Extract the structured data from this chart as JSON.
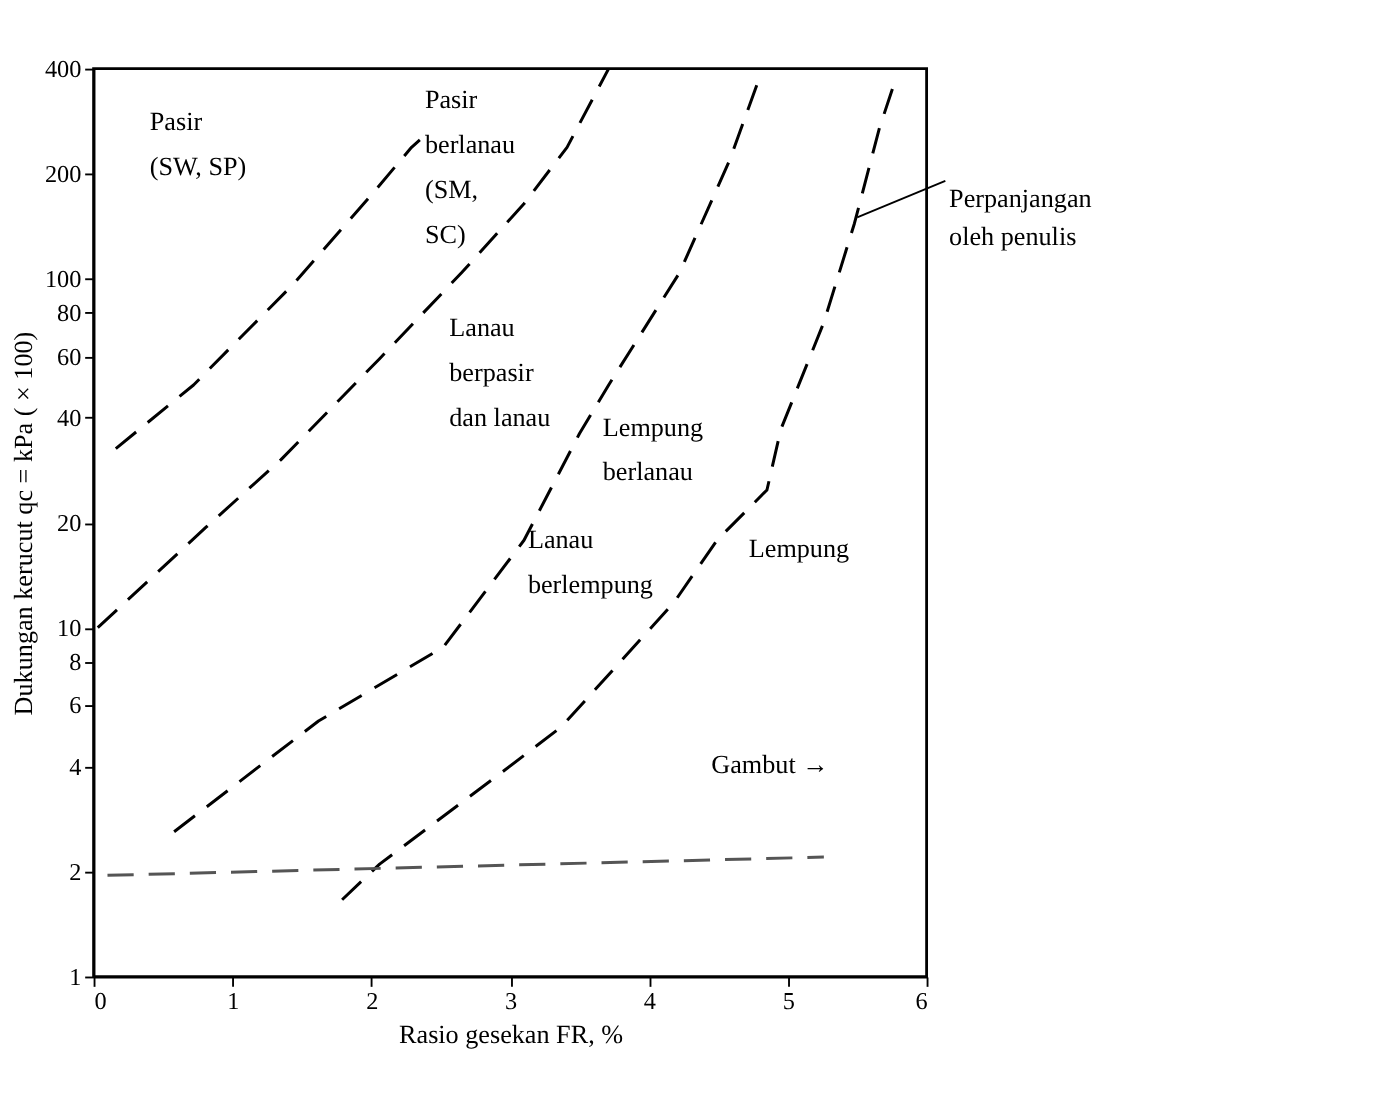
{
  "chart_data": {
    "type": "line",
    "xlabel": "Rasio gesekan FR, %",
    "ylabel": "Dukungan kerucut qc = kPa ( × 100)",
    "xlim": [
      0,
      6
    ],
    "xticks": [
      0,
      1,
      2,
      3,
      4,
      5,
      6
    ],
    "ylim": [
      1,
      400
    ],
    "yticks": [
      1,
      2,
      4,
      6,
      8,
      10,
      20,
      40,
      60,
      80,
      100,
      200,
      400
    ],
    "log": "y",
    "grid": false,
    "marker": "none",
    "line_style": "dashed",
    "series": [
      {
        "color": "#000000",
        "x": [
          0.16,
          0.72,
          1.44,
          1.98,
          2.29,
          2.35
        ],
        "values": [
          32.6,
          49.6,
          96.6,
          170,
          238,
          250
        ]
      },
      {
        "color": "#000000",
        "x": [
          0.03,
          0.81,
          1.35,
          2.06,
          2.65,
          3.1,
          3.41,
          3.71
        ],
        "values": [
          10,
          19.4,
          30.3,
          59,
          104,
          164,
          238,
          400
        ]
      },
      {
        "color": "#000000",
        "x": [
          0.58,
          1.62,
          2.52,
          3.1,
          3.5,
          3.71,
          4.22,
          4.58,
          4.81
        ],
        "values": [
          2.6,
          5.4,
          8.8,
          17.8,
          36,
          49.6,
          104,
          218,
          390
        ]
      },
      {
        "color": "#000000",
        "x": [
          1.79,
          2.06,
          2.96,
          3.37,
          4.18,
          4.49,
          4.85,
          4.95,
          5.26,
          5.48,
          5.66,
          5.77
        ],
        "values": [
          1.66,
          2.1,
          3.9,
          5.2,
          11.8,
          17.8,
          24.8,
          37,
          75,
          144,
          270,
          366
        ]
      },
      {
        "color": "#555555",
        "x": [
          0.1,
          5.26
        ],
        "values": [
          1.95,
          2.2
        ]
      }
    ],
    "annotations": [
      "Pasir\n(SW, SP)",
      "Pasir\nberlanau\n(SM,\nSC)",
      "Lanau\nberpasir\ndan lanau",
      "Lempung\nberlanau",
      "Lanau\nberlempung",
      "Lempung",
      "Gambut →",
      {
        "text": "Perpanjangan\noleh penulis",
        "x": 5.5,
        "y": 150
      }
    ]
  }
}
